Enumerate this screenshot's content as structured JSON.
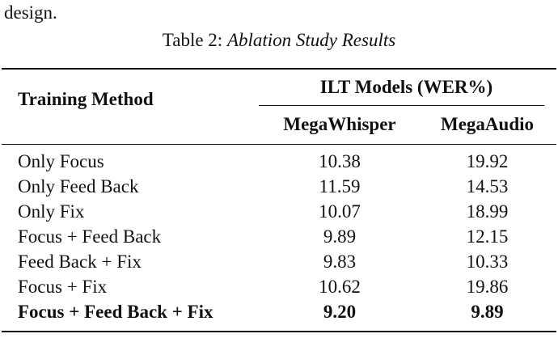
{
  "preceding_text": "design.",
  "table": {
    "caption_label": "Table 2:",
    "caption_title": "Ablation Study Results",
    "header": {
      "row_label": "Training Method",
      "group_label": "ILT Models (WER%)",
      "columns": [
        "MegaWhisper",
        "MegaAudio"
      ]
    },
    "rows": [
      {
        "method": "Only Focus",
        "megawhisper": "10.38",
        "megaaudio": "19.92",
        "bold": false
      },
      {
        "method": "Only Feed Back",
        "megawhisper": "11.59",
        "megaaudio": "14.53",
        "bold": false
      },
      {
        "method": "Only Fix",
        "megawhisper": "10.07",
        "megaaudio": "18.99",
        "bold": false
      },
      {
        "method": "Focus + Feed Back",
        "megawhisper": "9.89",
        "megaaudio": "12.15",
        "bold": false
      },
      {
        "method": "Feed Back + Fix",
        "megawhisper": "9.83",
        "megaaudio": "10.33",
        "bold": false
      },
      {
        "method": "Focus + Fix",
        "megawhisper": "10.62",
        "megaaudio": "19.86",
        "bold": false
      },
      {
        "method": "Focus + Feed Back + Fix",
        "megawhisper": "9.20",
        "megaaudio": "9.89",
        "bold": true
      }
    ]
  }
}
